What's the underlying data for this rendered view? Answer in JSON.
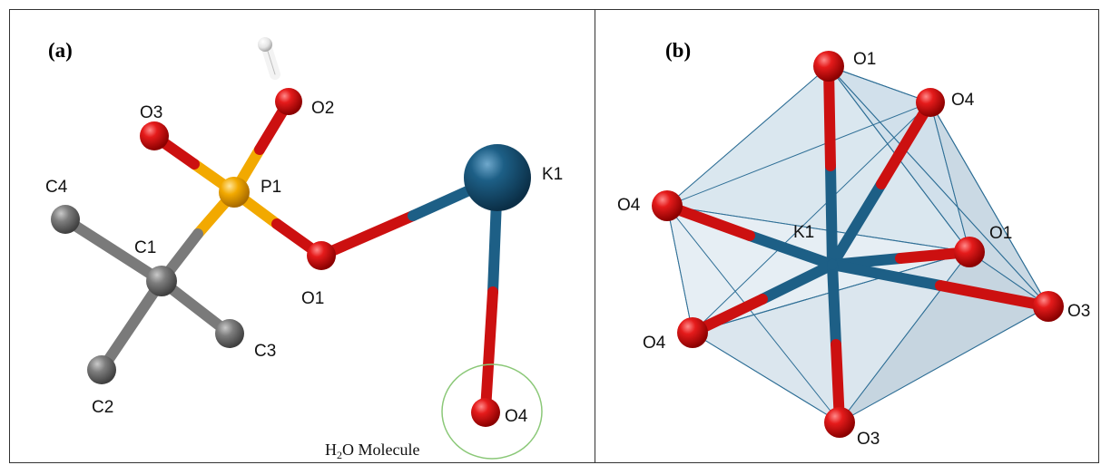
{
  "figure": {
    "panel_a": {
      "tag": "(a)",
      "atoms": {
        "o3": "O3",
        "o2": "O2",
        "p1": "P1",
        "c4": "C4",
        "c1": "C1",
        "o1": "O1",
        "k1": "K1",
        "c3": "C3",
        "c2": "C2",
        "o4": "O4"
      },
      "caption": {
        "prefix": "H",
        "subscript": "2",
        "suffix": "O Molecule"
      }
    },
    "panel_b": {
      "tag": "(b)",
      "atoms": {
        "o1_top": "O1",
        "o4_upper": "O4",
        "o4_left": "O4",
        "k1": "K1",
        "o1_right": "O1",
        "o3_right": "O3",
        "o4_lower": "O4",
        "o3_bottom": "O3"
      }
    }
  },
  "colors": {
    "oxygen": "#d91010",
    "phosphorus": "#f2a900",
    "carbon": "#7a7a7a",
    "potassium": "#1d5f86",
    "hydrogen": "#e8e8e8",
    "polyhedron_face": "#d6e4ee",
    "polyhedron_edge": "#2f6f96",
    "caption_ring": "#8bc878",
    "frame": "#333333"
  }
}
